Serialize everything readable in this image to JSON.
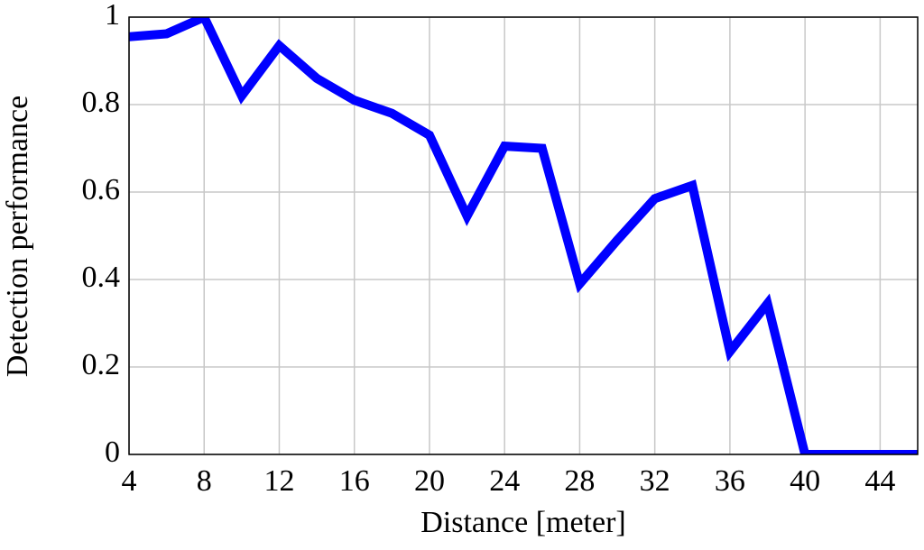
{
  "chart_data": {
    "type": "line",
    "x_label": "Distance [meter]",
    "y_label": "Detection performance",
    "x": [
      4,
      6,
      8,
      10,
      12,
      14,
      16,
      18,
      20,
      22,
      24,
      26,
      28,
      30,
      32,
      34,
      36,
      38,
      40,
      42,
      44,
      46
    ],
    "series": [
      {
        "color": "#0000ff",
        "values": [
          0.955,
          0.962,
          1.0,
          0.82,
          0.935,
          0.86,
          0.81,
          0.78,
          0.73,
          0.545,
          0.705,
          0.7,
          0.39,
          0.49,
          0.585,
          0.615,
          0.235,
          0.345,
          0,
          0,
          0,
          0
        ]
      }
    ],
    "xlim": [
      4,
      46
    ],
    "ylim": [
      0,
      1
    ],
    "xticks": [
      4,
      8,
      12,
      16,
      20,
      24,
      28,
      32,
      36,
      40,
      44
    ],
    "yticks": [
      0,
      0.2,
      0.4,
      0.6,
      0.8,
      1
    ],
    "grid": true
  }
}
